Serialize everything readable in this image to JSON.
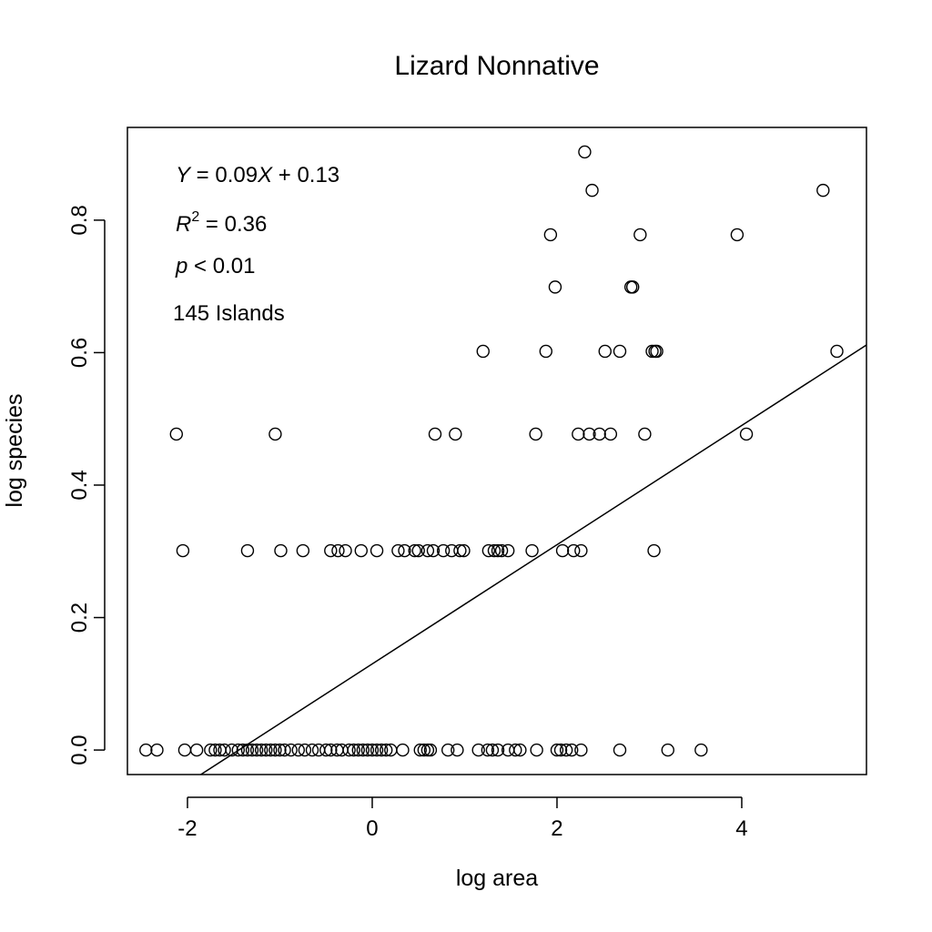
{
  "chart_data": {
    "type": "scatter",
    "title": "Lizard Nonnative",
    "xlabel": "log area",
    "ylabel": "log species",
    "xlim": [
      -2.65,
      5.35
    ],
    "ylim": [
      -0.037,
      0.94
    ],
    "xticks": [
      -2,
      0,
      2,
      4
    ],
    "xtick_labels": [
      "-2",
      "0",
      "2",
      "4"
    ],
    "yticks": [
      0.0,
      0.2,
      0.4,
      0.6,
      0.8
    ],
    "ytick_labels": [
      "0.0",
      "0.2",
      "0.4",
      "0.6",
      "0.8"
    ],
    "grid": false,
    "regression": {
      "slope": 0.09,
      "intercept": 0.13
    },
    "annotations": {
      "equation": {
        "y_var": "Y",
        "eq": " = 0.09",
        "x_var": "X",
        "rest": " + 0.13"
      },
      "r2": {
        "var": "R",
        "sup": "2",
        "rest": " = 0.36"
      },
      "pval": {
        "var": "p",
        "rest": " < 0.01"
      },
      "n": "145 Islands"
    },
    "points": [
      {
        "x": 2.3,
        "y": 0.903
      },
      {
        "x": 2.38,
        "y": 0.845
      },
      {
        "x": 4.88,
        "y": 0.845
      },
      {
        "x": 1.93,
        "y": 0.778
      },
      {
        "x": 2.9,
        "y": 0.778
      },
      {
        "x": 3.95,
        "y": 0.778
      },
      {
        "x": 1.98,
        "y": 0.699
      },
      {
        "x": 2.8,
        "y": 0.699
      },
      {
        "x": 2.82,
        "y": 0.699
      },
      {
        "x": 1.2,
        "y": 0.602
      },
      {
        "x": 1.88,
        "y": 0.602
      },
      {
        "x": 2.52,
        "y": 0.602
      },
      {
        "x": 2.68,
        "y": 0.602
      },
      {
        "x": 3.03,
        "y": 0.602
      },
      {
        "x": 3.06,
        "y": 0.602
      },
      {
        "x": 3.08,
        "y": 0.602
      },
      {
        "x": 5.03,
        "y": 0.602
      },
      {
        "x": -2.12,
        "y": 0.477
      },
      {
        "x": -1.05,
        "y": 0.477
      },
      {
        "x": 0.68,
        "y": 0.477
      },
      {
        "x": 0.9,
        "y": 0.477
      },
      {
        "x": 1.77,
        "y": 0.477
      },
      {
        "x": 2.23,
        "y": 0.477
      },
      {
        "x": 2.35,
        "y": 0.477
      },
      {
        "x": 2.46,
        "y": 0.477
      },
      {
        "x": 2.58,
        "y": 0.477
      },
      {
        "x": 2.95,
        "y": 0.477
      },
      {
        "x": 4.05,
        "y": 0.477
      },
      {
        "x": -2.05,
        "y": 0.301
      },
      {
        "x": -1.35,
        "y": 0.301
      },
      {
        "x": -0.99,
        "y": 0.301
      },
      {
        "x": -0.75,
        "y": 0.301
      },
      {
        "x": -0.45,
        "y": 0.301
      },
      {
        "x": -0.37,
        "y": 0.301
      },
      {
        "x": -0.29,
        "y": 0.301
      },
      {
        "x": -0.12,
        "y": 0.301
      },
      {
        "x": 0.05,
        "y": 0.301
      },
      {
        "x": 0.28,
        "y": 0.301
      },
      {
        "x": 0.35,
        "y": 0.301
      },
      {
        "x": 0.46,
        "y": 0.301
      },
      {
        "x": 0.5,
        "y": 0.301
      },
      {
        "x": 0.6,
        "y": 0.301
      },
      {
        "x": 0.66,
        "y": 0.301
      },
      {
        "x": 0.77,
        "y": 0.301
      },
      {
        "x": 0.86,
        "y": 0.301
      },
      {
        "x": 0.95,
        "y": 0.301
      },
      {
        "x": 0.99,
        "y": 0.301
      },
      {
        "x": 1.26,
        "y": 0.301
      },
      {
        "x": 1.32,
        "y": 0.301
      },
      {
        "x": 1.36,
        "y": 0.301
      },
      {
        "x": 1.4,
        "y": 0.301
      },
      {
        "x": 1.47,
        "y": 0.301
      },
      {
        "x": 1.73,
        "y": 0.301
      },
      {
        "x": 2.06,
        "y": 0.301
      },
      {
        "x": 2.18,
        "y": 0.301
      },
      {
        "x": 2.26,
        "y": 0.301
      },
      {
        "x": 3.05,
        "y": 0.301
      },
      {
        "x": -2.45,
        "y": 0.0
      },
      {
        "x": -2.33,
        "y": 0.0
      },
      {
        "x": -2.03,
        "y": 0.0
      },
      {
        "x": -1.9,
        "y": 0.0
      },
      {
        "x": -1.75,
        "y": 0.0
      },
      {
        "x": -1.7,
        "y": 0.0
      },
      {
        "x": -1.65,
        "y": 0.0
      },
      {
        "x": -1.6,
        "y": 0.0
      },
      {
        "x": -1.52,
        "y": 0.0
      },
      {
        "x": -1.45,
        "y": 0.0
      },
      {
        "x": -1.4,
        "y": 0.0
      },
      {
        "x": -1.35,
        "y": 0.0
      },
      {
        "x": -1.3,
        "y": 0.0
      },
      {
        "x": -1.25,
        "y": 0.0
      },
      {
        "x": -1.2,
        "y": 0.0
      },
      {
        "x": -1.15,
        "y": 0.0
      },
      {
        "x": -1.1,
        "y": 0.0
      },
      {
        "x": -1.05,
        "y": 0.0
      },
      {
        "x": -1.0,
        "y": 0.0
      },
      {
        "x": -0.95,
        "y": 0.0
      },
      {
        "x": -0.88,
        "y": 0.0
      },
      {
        "x": -0.8,
        "y": 0.0
      },
      {
        "x": -0.73,
        "y": 0.0
      },
      {
        "x": -0.65,
        "y": 0.0
      },
      {
        "x": -0.58,
        "y": 0.0
      },
      {
        "x": -0.5,
        "y": 0.0
      },
      {
        "x": -0.45,
        "y": 0.0
      },
      {
        "x": -0.38,
        "y": 0.0
      },
      {
        "x": -0.33,
        "y": 0.0
      },
      {
        "x": -0.25,
        "y": 0.0
      },
      {
        "x": -0.2,
        "y": 0.0
      },
      {
        "x": -0.15,
        "y": 0.0
      },
      {
        "x": -0.1,
        "y": 0.0
      },
      {
        "x": -0.05,
        "y": 0.0
      },
      {
        "x": 0.0,
        "y": 0.0
      },
      {
        "x": 0.05,
        "y": 0.0
      },
      {
        "x": 0.1,
        "y": 0.0
      },
      {
        "x": 0.15,
        "y": 0.0
      },
      {
        "x": 0.2,
        "y": 0.0
      },
      {
        "x": 0.33,
        "y": 0.0
      },
      {
        "x": 0.52,
        "y": 0.0
      },
      {
        "x": 0.56,
        "y": 0.0
      },
      {
        "x": 0.6,
        "y": 0.0
      },
      {
        "x": 0.63,
        "y": 0.0
      },
      {
        "x": 0.82,
        "y": 0.0
      },
      {
        "x": 0.92,
        "y": 0.0
      },
      {
        "x": 1.15,
        "y": 0.0
      },
      {
        "x": 1.25,
        "y": 0.0
      },
      {
        "x": 1.3,
        "y": 0.0
      },
      {
        "x": 1.36,
        "y": 0.0
      },
      {
        "x": 1.47,
        "y": 0.0
      },
      {
        "x": 1.55,
        "y": 0.0
      },
      {
        "x": 1.6,
        "y": 0.0
      },
      {
        "x": 1.78,
        "y": 0.0
      },
      {
        "x": 2.0,
        "y": 0.0
      },
      {
        "x": 2.04,
        "y": 0.0
      },
      {
        "x": 2.1,
        "y": 0.0
      },
      {
        "x": 2.16,
        "y": 0.0
      },
      {
        "x": 2.26,
        "y": 0.0
      },
      {
        "x": 2.68,
        "y": 0.0
      },
      {
        "x": 3.2,
        "y": 0.0
      },
      {
        "x": 3.56,
        "y": 0.0
      }
    ]
  }
}
